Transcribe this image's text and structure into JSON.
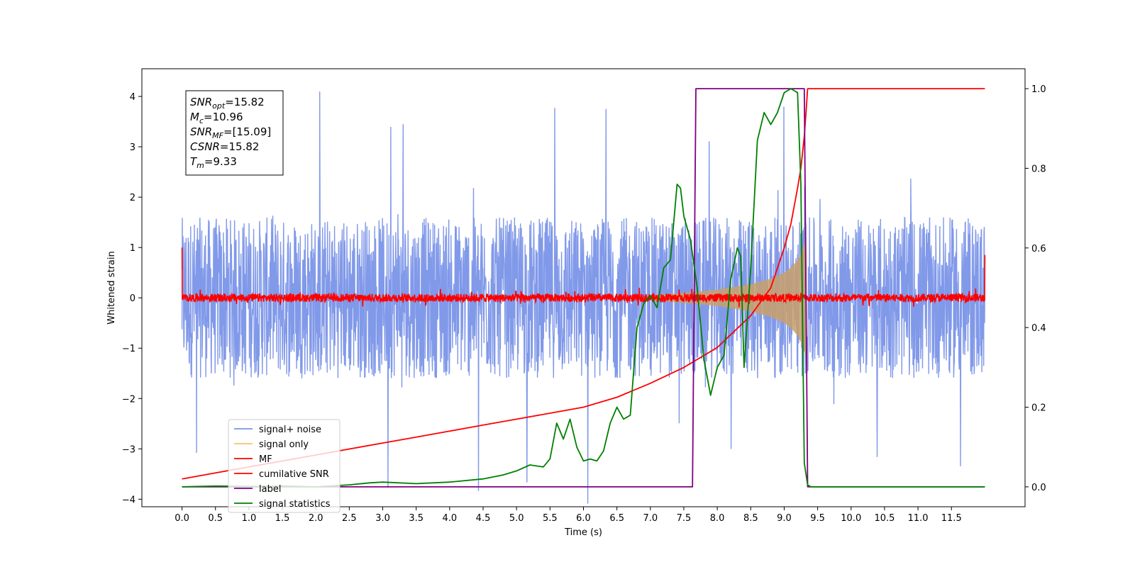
{
  "chart_data": {
    "type": "line",
    "xlabel": "Time (s)",
    "ylabel": "Whitened strain",
    "xlim": [
      -0.6,
      12.6
    ],
    "ylim": [
      -4.15,
      4.55
    ],
    "y2lim": [
      -0.05,
      1.05
    ],
    "x_ticks": [
      0.0,
      0.5,
      1.0,
      1.5,
      2.0,
      2.5,
      3.0,
      3.5,
      4.0,
      4.5,
      5.0,
      5.5,
      6.0,
      6.5,
      7.0,
      7.5,
      8.0,
      8.5,
      9.0,
      9.5,
      10.0,
      10.5,
      11.0,
      11.5
    ],
    "x_tick_labels": [
      "0.0",
      "0.5",
      "1.0",
      "1.5",
      "2.0",
      "2.5",
      "3.0",
      "3.5",
      "4.0",
      "4.5",
      "5.0",
      "5.5",
      "6.0",
      "6.5",
      "7.0",
      "7.5",
      "8.0",
      "8.5",
      "9.0",
      "9.5",
      "10.0",
      "10.5",
      "11.0",
      "11.5"
    ],
    "y_ticks": [
      -4,
      -3,
      -2,
      -1,
      0,
      1,
      2,
      3,
      4
    ],
    "y_tick_labels": [
      "−4",
      "−3",
      "−2",
      "−1",
      "0",
      "1",
      "2",
      "3",
      "4"
    ],
    "y2_ticks": [
      0.0,
      0.2,
      0.4,
      0.6,
      0.8,
      1.0
    ],
    "y2_tick_labels": [
      "0.0",
      "0.2",
      "0.4",
      "0.6",
      "0.8",
      "1.0"
    ],
    "legend": {
      "placement": "lower-left",
      "entries": [
        {
          "label": "signal+ noise",
          "color": "#7a93e8"
        },
        {
          "label": "signal only",
          "color": "#f5c36b"
        },
        {
          "label": "MF",
          "color": "#ff0000"
        },
        {
          "label": "cumilative SNR",
          "color": "#ff0000"
        },
        {
          "label": "label",
          "color": "#800080"
        },
        {
          "label": "signal statistics",
          "color": "#008000"
        }
      ]
    },
    "info_box": {
      "lines": [
        {
          "base": "SNR",
          "sub": "opt",
          "value": "=15.82"
        },
        {
          "base": "M",
          "sub": "c",
          "value": "=10.96"
        },
        {
          "base": "SNR",
          "sub": "MF",
          "value": "=[15.09]"
        },
        {
          "base": "CSNR",
          "sub": "",
          "value": "=15.82"
        },
        {
          "base": "T",
          "sub": "m",
          "value": "=9.33"
        }
      ]
    },
    "series": [
      {
        "name": "signal+ noise",
        "axis": "left",
        "color": "#7a93e8",
        "kind": "noise",
        "x_range": [
          0.0,
          12.0
        ],
        "envelope_typical": 1.6,
        "envelope_max": 4.2
      },
      {
        "name": "signal only",
        "axis": "left",
        "color": "#c9a06a",
        "kind": "chirp_envelope",
        "x": [
          7.0,
          7.5,
          8.0,
          8.5,
          8.8,
          9.0,
          9.1,
          9.2,
          9.25,
          9.3,
          9.33
        ],
        "y": [
          0.05,
          0.1,
          0.16,
          0.27,
          0.38,
          0.5,
          0.6,
          0.75,
          0.88,
          1.08,
          1.2
        ]
      },
      {
        "name": "MF",
        "axis": "left",
        "color": "#ff0000",
        "kind": "noise",
        "x_range": [
          0.0,
          12.0
        ],
        "envelope_typical": 0.08,
        "envelope_max": 0.2
      },
      {
        "name": "cumilative SNR",
        "axis": "right",
        "color": "#ff0000",
        "x": [
          0.0,
          0.5,
          1.0,
          1.5,
          2.0,
          2.5,
          3.0,
          3.5,
          4.0,
          4.5,
          5.0,
          5.5,
          6.0,
          6.5,
          7.0,
          7.5,
          8.0,
          8.5,
          8.8,
          9.0,
          9.1,
          9.2,
          9.25,
          9.3,
          9.33,
          9.35,
          12.0
        ],
        "y": [
          0.02,
          0.035,
          0.05,
          0.065,
          0.08,
          0.095,
          0.11,
          0.125,
          0.14,
          0.155,
          0.17,
          0.185,
          0.2,
          0.225,
          0.26,
          0.3,
          0.35,
          0.43,
          0.5,
          0.6,
          0.66,
          0.75,
          0.8,
          0.88,
          0.95,
          1.0,
          1.0
        ]
      },
      {
        "name": "label",
        "axis": "right",
        "color": "#800080",
        "x": [
          0.0,
          7.63,
          7.68,
          9.3,
          9.35,
          12.0
        ],
        "y": [
          0.0,
          0.0,
          1.0,
          1.0,
          0.0,
          0.0
        ]
      },
      {
        "name": "signal statistics",
        "axis": "right",
        "color": "#008000",
        "x": [
          0.0,
          0.5,
          1.0,
          1.5,
          2.0,
          2.5,
          2.8,
          3.0,
          3.5,
          4.0,
          4.5,
          4.8,
          5.0,
          5.2,
          5.4,
          5.5,
          5.6,
          5.7,
          5.8,
          5.9,
          6.0,
          6.1,
          6.2,
          6.3,
          6.4,
          6.5,
          6.6,
          6.7,
          6.8,
          6.9,
          7.0,
          7.1,
          7.2,
          7.3,
          7.4,
          7.45,
          7.5,
          7.6,
          7.7,
          7.8,
          7.9,
          8.0,
          8.1,
          8.2,
          8.3,
          8.35,
          8.4,
          8.5,
          8.6,
          8.7,
          8.8,
          8.9,
          9.0,
          9.1,
          9.2,
          9.25,
          9.3,
          9.35,
          9.4,
          12.0
        ],
        "y": [
          0.0,
          0.002,
          0.001,
          0.002,
          0.0,
          0.005,
          0.01,
          0.012,
          0.008,
          0.012,
          0.02,
          0.03,
          0.04,
          0.055,
          0.05,
          0.07,
          0.16,
          0.12,
          0.17,
          0.1,
          0.065,
          0.07,
          0.065,
          0.09,
          0.16,
          0.2,
          0.17,
          0.18,
          0.4,
          0.46,
          0.48,
          0.45,
          0.55,
          0.57,
          0.76,
          0.75,
          0.68,
          0.62,
          0.5,
          0.32,
          0.23,
          0.3,
          0.33,
          0.52,
          0.6,
          0.58,
          0.3,
          0.55,
          0.87,
          0.94,
          0.91,
          0.94,
          0.99,
          1.0,
          0.99,
          0.76,
          0.06,
          0.005,
          0.0,
          0.0
        ]
      }
    ]
  }
}
